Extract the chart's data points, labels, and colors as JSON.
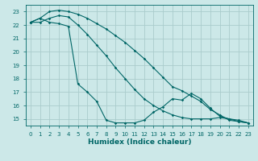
{
  "xlabel": "Humidex (Indice chaleur)",
  "ylabel": "",
  "bg_color": "#cce8e8",
  "grid_color": "#aacccc",
  "line_color": "#006666",
  "xlim": [
    -0.5,
    23.5
  ],
  "ylim": [
    14.5,
    23.5
  ],
  "yticks": [
    15,
    16,
    17,
    18,
    19,
    20,
    21,
    22,
    23
  ],
  "xticks": [
    0,
    1,
    2,
    3,
    4,
    5,
    6,
    7,
    8,
    9,
    10,
    11,
    12,
    13,
    14,
    15,
    16,
    17,
    18,
    19,
    20,
    21,
    22,
    23
  ],
  "line1_x": [
    0,
    1,
    2,
    3,
    4,
    5,
    6,
    7,
    8,
    9,
    10,
    11,
    12,
    13,
    14,
    15,
    16,
    17,
    18,
    19,
    20,
    21,
    22,
    23
  ],
  "line1_y": [
    22.2,
    22.5,
    22.2,
    22.1,
    21.9,
    17.6,
    17.0,
    16.3,
    14.9,
    14.7,
    14.7,
    14.7,
    14.9,
    15.5,
    15.9,
    16.5,
    16.4,
    16.9,
    16.5,
    15.8,
    15.2,
    15.0,
    14.8,
    14.7
  ],
  "line2_x": [
    0,
    1,
    2,
    3,
    4,
    5,
    6,
    7,
    8,
    9,
    10,
    11,
    12,
    13,
    14,
    15,
    16,
    17,
    18,
    19,
    20,
    21,
    22,
    23
  ],
  "line2_y": [
    22.2,
    22.2,
    22.5,
    22.7,
    22.6,
    22.0,
    21.3,
    20.5,
    19.7,
    18.8,
    18.0,
    17.2,
    16.5,
    16.0,
    15.6,
    15.3,
    15.1,
    15.0,
    15.0,
    15.0,
    15.1,
    15.0,
    14.9,
    14.7
  ],
  "line3_x": [
    0,
    1,
    2,
    3,
    4,
    5,
    6,
    7,
    8,
    9,
    10,
    11,
    12,
    13,
    14,
    15,
    16,
    17,
    18,
    19,
    20,
    21,
    22,
    23
  ],
  "line3_y": [
    22.2,
    22.5,
    23.0,
    23.1,
    23.0,
    22.8,
    22.5,
    22.1,
    21.7,
    21.2,
    20.7,
    20.1,
    19.5,
    18.8,
    18.1,
    17.4,
    17.1,
    16.7,
    16.3,
    15.7,
    15.3,
    14.9,
    14.8,
    14.7
  ]
}
